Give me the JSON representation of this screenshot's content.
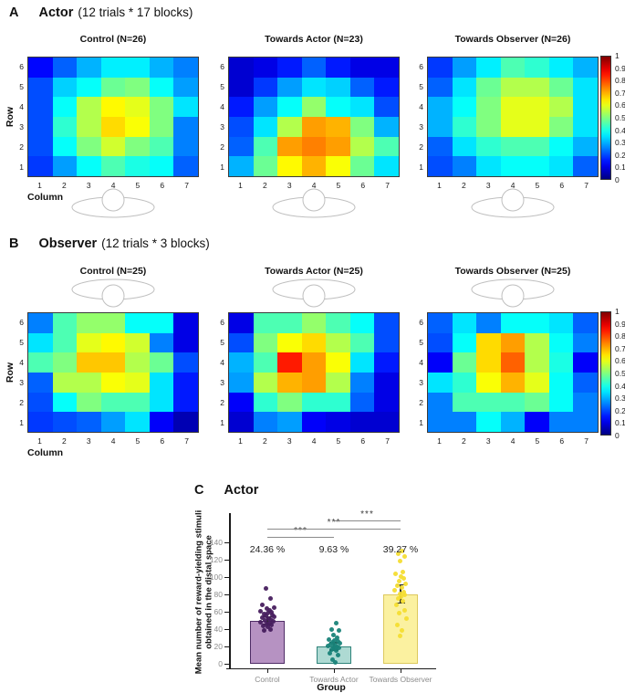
{
  "figure": {
    "panelA": {
      "label": "A",
      "title": "Actor",
      "subtitle": "(12 trials * 17 blocks)"
    },
    "panelB": {
      "label": "B",
      "title": "Observer",
      "subtitle": "(12 trials * 3 blocks)"
    },
    "panelC": {
      "label": "C",
      "title": "Actor"
    }
  },
  "colorbar": {
    "ticks": [
      "1",
      "0.9",
      "0.8",
      "0.7",
      "0.6",
      "0.5",
      "0.4",
      "0.3",
      "0.2",
      "0.1",
      "0"
    ]
  },
  "chart_data": [
    {
      "id": "A1",
      "panel": "A",
      "type": "heatmap",
      "colormap": "jet",
      "zlim": [
        0,
        1
      ],
      "title": "Control (N=26)",
      "xlabel": "Column",
      "ylabel": "Row",
      "show_axis_labels": true,
      "rows": [
        "6",
        "5",
        "4",
        "3",
        "2",
        "1"
      ],
      "cols": [
        "1",
        "2",
        "3",
        "4",
        "5",
        "6",
        "7"
      ],
      "person_icon": "below",
      "values": [
        [
          0.13,
          0.22,
          0.3,
          0.36,
          0.36,
          0.3,
          0.25
        ],
        [
          0.2,
          0.33,
          0.38,
          0.48,
          0.5,
          0.38,
          0.28
        ],
        [
          0.2,
          0.38,
          0.55,
          0.63,
          0.6,
          0.5,
          0.35
        ],
        [
          0.2,
          0.42,
          0.55,
          0.66,
          0.62,
          0.5,
          0.25
        ],
        [
          0.2,
          0.38,
          0.5,
          0.58,
          0.5,
          0.45,
          0.25
        ],
        [
          0.18,
          0.28,
          0.38,
          0.45,
          0.4,
          0.38,
          0.22
        ]
      ]
    },
    {
      "id": "A2",
      "panel": "A",
      "type": "heatmap",
      "colormap": "jet",
      "zlim": [
        0,
        1
      ],
      "title": "Towards Actor (N=23)",
      "xlabel": "Column",
      "ylabel": "Row",
      "show_axis_labels": false,
      "rows": [
        "6",
        "5",
        "4",
        "3",
        "2",
        "1"
      ],
      "cols": [
        "1",
        "2",
        "3",
        "4",
        "5",
        "6",
        "7"
      ],
      "person_icon": "below",
      "values": [
        [
          0.08,
          0.1,
          0.15,
          0.22,
          0.15,
          0.1,
          0.1
        ],
        [
          0.08,
          0.18,
          0.28,
          0.35,
          0.33,
          0.22,
          0.15
        ],
        [
          0.15,
          0.28,
          0.38,
          0.52,
          0.38,
          0.35,
          0.2
        ],
        [
          0.2,
          0.35,
          0.55,
          0.72,
          0.7,
          0.5,
          0.3
        ],
        [
          0.22,
          0.45,
          0.72,
          0.75,
          0.72,
          0.55,
          0.45
        ],
        [
          0.3,
          0.48,
          0.63,
          0.7,
          0.62,
          0.48,
          0.35
        ]
      ]
    },
    {
      "id": "A3",
      "panel": "A",
      "type": "heatmap",
      "colormap": "jet",
      "zlim": [
        0,
        1
      ],
      "title": "Towards Observer (N=26)",
      "xlabel": "Column",
      "ylabel": "Row",
      "show_axis_labels": false,
      "rows": [
        "6",
        "5",
        "4",
        "3",
        "2",
        "1"
      ],
      "cols": [
        "1",
        "2",
        "3",
        "4",
        "5",
        "6",
        "7"
      ],
      "person_icon": "below",
      "values": [
        [
          0.18,
          0.28,
          0.36,
          0.45,
          0.42,
          0.36,
          0.3
        ],
        [
          0.22,
          0.35,
          0.48,
          0.55,
          0.55,
          0.48,
          0.35
        ],
        [
          0.3,
          0.38,
          0.5,
          0.6,
          0.6,
          0.55,
          0.35
        ],
        [
          0.3,
          0.42,
          0.5,
          0.6,
          0.6,
          0.5,
          0.35
        ],
        [
          0.22,
          0.35,
          0.42,
          0.45,
          0.45,
          0.38,
          0.3
        ],
        [
          0.2,
          0.25,
          0.35,
          0.38,
          0.38,
          0.35,
          0.22
        ]
      ]
    },
    {
      "id": "B1",
      "panel": "B",
      "type": "heatmap",
      "colormap": "jet",
      "zlim": [
        0,
        1
      ],
      "title": "Control (N=25)",
      "xlabel": "Column",
      "ylabel": "Row",
      "show_axis_labels": true,
      "rows": [
        "6",
        "5",
        "4",
        "3",
        "2",
        "1"
      ],
      "cols": [
        "1",
        "2",
        "3",
        "4",
        "5",
        "6",
        "7"
      ],
      "person_icon": "above",
      "values": [
        [
          0.25,
          0.45,
          0.52,
          0.52,
          0.38,
          0.38,
          0.1
        ],
        [
          0.35,
          0.45,
          0.6,
          0.63,
          0.58,
          0.25,
          0.1
        ],
        [
          0.45,
          0.5,
          0.68,
          0.68,
          0.55,
          0.48,
          0.2
        ],
        [
          0.22,
          0.55,
          0.55,
          0.62,
          0.6,
          0.35,
          0.15
        ],
        [
          0.2,
          0.38,
          0.5,
          0.45,
          0.45,
          0.35,
          0.15
        ],
        [
          0.18,
          0.2,
          0.22,
          0.28,
          0.35,
          0.12,
          0.05
        ]
      ]
    },
    {
      "id": "B2",
      "panel": "B",
      "type": "heatmap",
      "colormap": "jet",
      "zlim": [
        0,
        1
      ],
      "title": "Towards Actor (N=25)",
      "xlabel": "Column",
      "ylabel": "Row",
      "show_axis_labels": false,
      "rows": [
        "6",
        "5",
        "4",
        "3",
        "2",
        "1"
      ],
      "cols": [
        "1",
        "2",
        "3",
        "4",
        "5",
        "6",
        "7"
      ],
      "person_icon": "above",
      "values": [
        [
          0.1,
          0.45,
          0.45,
          0.52,
          0.45,
          0.38,
          0.2
        ],
        [
          0.2,
          0.5,
          0.62,
          0.66,
          0.55,
          0.45,
          0.2
        ],
        [
          0.3,
          0.45,
          0.85,
          0.72,
          0.62,
          0.35,
          0.15
        ],
        [
          0.28,
          0.55,
          0.7,
          0.72,
          0.55,
          0.25,
          0.1
        ],
        [
          0.12,
          0.42,
          0.5,
          0.42,
          0.42,
          0.22,
          0.1
        ],
        [
          0.08,
          0.25,
          0.28,
          0.12,
          0.1,
          0.08,
          0.08
        ]
      ]
    },
    {
      "id": "B3",
      "panel": "B",
      "type": "heatmap",
      "colormap": "jet",
      "zlim": [
        0,
        1
      ],
      "title": "Towards Observer (N=25)",
      "xlabel": "Column",
      "ylabel": "Row",
      "show_axis_labels": false,
      "rows": [
        "6",
        "5",
        "4",
        "3",
        "2",
        "1"
      ],
      "cols": [
        "1",
        "2",
        "3",
        "4",
        "5",
        "6",
        "7"
      ],
      "person_icon": "above",
      "values": [
        [
          0.22,
          0.35,
          0.25,
          0.38,
          0.38,
          0.35,
          0.22
        ],
        [
          0.2,
          0.38,
          0.66,
          0.72,
          0.55,
          0.38,
          0.25
        ],
        [
          0.12,
          0.48,
          0.66,
          0.78,
          0.55,
          0.4,
          0.12
        ],
        [
          0.35,
          0.42,
          0.62,
          0.7,
          0.6,
          0.38,
          0.22
        ],
        [
          0.25,
          0.45,
          0.45,
          0.45,
          0.48,
          0.38,
          0.25
        ],
        [
          0.25,
          0.25,
          0.38,
          0.3,
          0.12,
          0.25,
          0.25
        ]
      ]
    },
    {
      "id": "C",
      "panel": "C",
      "type": "bar",
      "title": "Actor",
      "xlabel": "Group",
      "ylabel_lines": [
        "Mean number of reward-yielding stimuli",
        "obtained in the distal space"
      ],
      "yticks": [
        0,
        20,
        40,
        60,
        80,
        100,
        120,
        140
      ],
      "ylim": [
        0,
        155
      ],
      "categories": [
        "Control",
        "Towards Actor",
        "Towards Observer"
      ],
      "means": [
        50,
        20,
        80.5
      ],
      "error_bars": [
        [
          46,
          54
        ],
        [
          16,
          24
        ],
        [
          70,
          91
        ]
      ],
      "pct_labels": [
        "24.36 %",
        "9.63 %",
        "39.27 %"
      ],
      "bar_fill": [
        "#b692c2",
        "#aedad3",
        "#fbf1a0"
      ],
      "bar_stroke": [
        "#4f2d66",
        "#2f837a",
        "#ddc95e"
      ],
      "dot_color": [
        "#471e5e",
        "#198379",
        "#f4dd32"
      ],
      "points": [
        {
          "values": [
            87,
            75,
            68,
            65,
            64,
            62,
            61,
            60,
            58,
            57,
            56,
            55,
            54,
            53,
            52,
            51,
            50,
            49,
            48,
            47,
            46,
            45,
            44,
            43,
            40,
            38
          ],
          "jitter": [
            -2,
            3,
            -6,
            7,
            -1,
            2,
            -8,
            4,
            0,
            -4,
            5,
            -2,
            7,
            -6,
            1,
            3,
            -3,
            6,
            -8,
            2,
            -1,
            4,
            -5,
            0,
            3,
            -4
          ]
        },
        {
          "values": [
            47,
            40,
            38,
            33,
            30,
            28,
            27,
            26,
            25,
            24,
            23,
            22,
            21,
            20,
            19,
            18,
            17,
            16,
            15,
            12,
            10,
            5,
            2
          ],
          "jitter": [
            2,
            -3,
            5,
            -1,
            3,
            -6,
            0,
            4,
            -2,
            6,
            -4,
            1,
            -7,
            3,
            -1,
            5,
            0,
            -3,
            2,
            -5,
            4,
            -2,
            1
          ]
        },
        {
          "values": [
            130,
            127,
            124,
            118,
            106,
            104,
            101,
            98,
            95,
            92,
            90,
            88,
            85,
            83,
            81,
            79,
            77,
            75,
            72,
            68,
            62,
            58,
            52,
            45,
            38,
            32
          ],
          "jitter": [
            1,
            -3,
            4,
            -1,
            2,
            -6,
            0,
            3,
            -2,
            5,
            -4,
            1,
            -7,
            3,
            -1,
            4,
            0,
            -3,
            2,
            -5,
            4,
            -2,
            6,
            -4,
            1,
            -1
          ]
        }
      ],
      "significance": [
        {
          "pair": [
            0,
            1
          ],
          "label": "***"
        },
        {
          "pair": [
            0,
            2
          ],
          "label": "***"
        },
        {
          "pair": [
            1,
            2
          ],
          "label": "***"
        }
      ]
    }
  ]
}
